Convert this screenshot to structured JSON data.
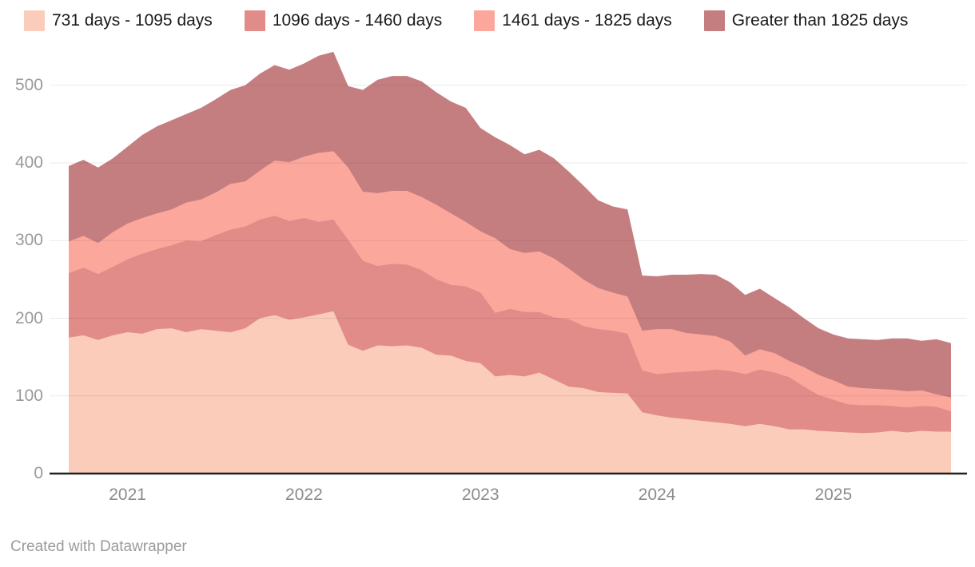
{
  "footer": {
    "credit": "Created with Datawrapper"
  },
  "colors": {
    "background": "#ffffff",
    "gridline": "rgba(20,20,20,0.09)",
    "axis_line": "#222222",
    "y_tick_text": "#9a9a9a",
    "x_tick_text": "#8c8c8c",
    "legend_text": "#1a1a1a",
    "footer_text": "#9b9b9b"
  },
  "chart_data": {
    "type": "area",
    "stacked": true,
    "title": "",
    "xlabel": "",
    "ylabel": "",
    "x_unit": "month",
    "x_start": "2020-09",
    "x_end": "2025-09",
    "n_points": 61,
    "x_tick_labels": [
      "2021",
      "2022",
      "2023",
      "2024",
      "2025"
    ],
    "x_tick_month_indices": [
      4,
      16,
      28,
      40,
      52
    ],
    "y_ticks": [
      0,
      100,
      200,
      300,
      400,
      500
    ],
    "y_tick_labels": [
      "0",
      "100",
      "200",
      "300",
      "400",
      "500"
    ],
    "ylim": [
      0,
      560
    ],
    "grid": "horizontal",
    "legend_position": "top",
    "series": [
      {
        "name": "731 days - 1095 days",
        "color": "#fbccb9",
        "values": [
          175,
          178,
          172,
          178,
          182,
          180,
          186,
          187,
          182,
          186,
          184,
          182,
          187,
          200,
          204,
          198,
          201,
          205,
          209,
          166,
          158,
          165,
          164,
          165,
          162,
          153,
          152,
          145,
          142,
          125,
          127,
          125,
          130,
          121,
          112,
          110,
          105,
          104,
          103,
          79,
          75,
          72,
          70,
          68,
          66,
          64,
          61,
          64,
          61,
          57,
          57,
          55,
          54,
          53,
          52,
          53,
          55,
          53,
          55,
          54,
          54
        ]
      },
      {
        "name": "1096 days - 1460 days",
        "color": "#e18c88",
        "values": [
          83,
          87,
          85,
          88,
          94,
          103,
          103,
          107,
          118,
          113,
          123,
          132,
          131,
          127,
          128,
          127,
          128,
          119,
          118,
          135,
          116,
          102,
          106,
          104,
          100,
          97,
          91,
          96,
          91,
          82,
          85,
          83,
          78,
          80,
          87,
          80,
          81,
          80,
          77,
          54,
          53,
          58,
          61,
          64,
          68,
          68,
          67,
          70,
          69,
          67,
          55,
          46,
          41,
          36,
          36,
          35,
          32,
          32,
          32,
          32,
          26
        ]
      },
      {
        "name": "1461 days - 1825 days",
        "color": "#fca79b",
        "values": [
          41,
          41,
          40,
          45,
          46,
          46,
          46,
          46,
          49,
          54,
          55,
          59,
          58,
          63,
          71,
          76,
          79,
          89,
          88,
          93,
          89,
          94,
          94,
          95,
          94,
          96,
          92,
          83,
          79,
          96,
          77,
          76,
          78,
          76,
          65,
          60,
          53,
          49,
          48,
          51,
          58,
          56,
          50,
          47,
          43,
          38,
          24,
          26,
          25,
          21,
          25,
          26,
          25,
          23,
          22,
          21,
          21,
          21,
          20,
          16,
          18
        ]
      },
      {
        "name": "Greater than 1825 days",
        "color": "#c57e80",
        "values": [
          97,
          98,
          97,
          95,
          99,
          107,
          112,
          115,
          114,
          118,
          120,
          121,
          124,
          125,
          123,
          119,
          120,
          125,
          128,
          105,
          131,
          146,
          148,
          148,
          149,
          145,
          144,
          147,
          133,
          130,
          134,
          127,
          131,
          129,
          125,
          121,
          113,
          111,
          112,
          71,
          68,
          70,
          75,
          78,
          79,
          76,
          78,
          78,
          71,
          69,
          63,
          60,
          59,
          62,
          63,
          63,
          66,
          68,
          64,
          71,
          70
        ]
      }
    ]
  }
}
